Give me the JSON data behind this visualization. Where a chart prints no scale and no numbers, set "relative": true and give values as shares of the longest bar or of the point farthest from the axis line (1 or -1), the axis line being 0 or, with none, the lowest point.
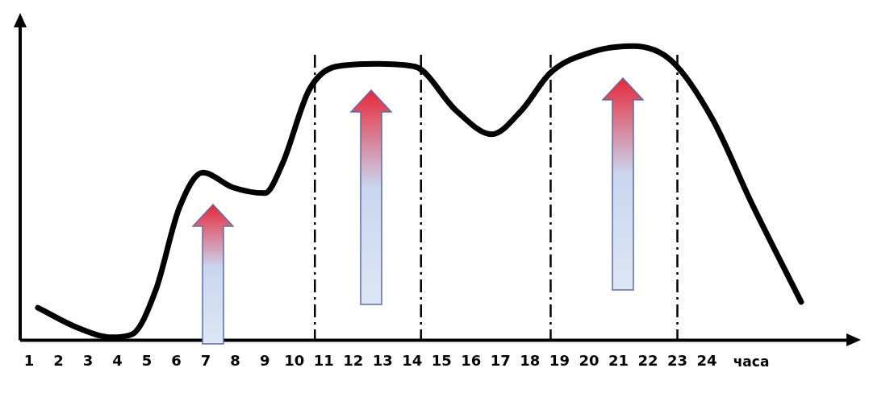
{
  "chart_data": {
    "type": "line",
    "relative": true,
    "xlabel": "часа",
    "xlim": [
      0.7,
      28.9
    ],
    "xticks": [
      1,
      2,
      3,
      4,
      5,
      6,
      7,
      8,
      9,
      10,
      11,
      12,
      13,
      14,
      15,
      16,
      17,
      18,
      19,
      20,
      21,
      22,
      23,
      24
    ],
    "series": [
      {
        "color": "#000000",
        "x": [
          1.3,
          2.7,
          3.8,
          4.5,
          5.3,
          6.1,
          6.9,
          7.9,
          9.0,
          9.6,
          10.5,
          11.4,
          12.8,
          14.1,
          15.5,
          16.7,
          17.7,
          18.7,
          20.1,
          21.5,
          22.8,
          24.2,
          25.5,
          27.2
        ],
        "values": [
          0.11,
          0.04,
          0.01,
          0.02,
          0.17,
          0.45,
          0.57,
          0.52,
          0.5,
          0.6,
          0.85,
          0.93,
          0.94,
          0.93,
          0.78,
          0.7,
          0.78,
          0.91,
          0.98,
          1.0,
          0.95,
          0.75,
          0.47,
          0.13
        ]
      }
    ],
    "ref_lines": [
      {
        "axis": "x",
        "value": 10.7,
        "line_style": "dashdot"
      },
      {
        "axis": "x",
        "value": 14.3,
        "line_style": "dashdot"
      },
      {
        "axis": "x",
        "value": 18.7,
        "line_style": "dashdot"
      },
      {
        "axis": "x",
        "value": 23.0,
        "line_style": "dashdot"
      }
    ],
    "grid": false,
    "legend": false,
    "marker": "none",
    "line_style": "solid"
  }
}
